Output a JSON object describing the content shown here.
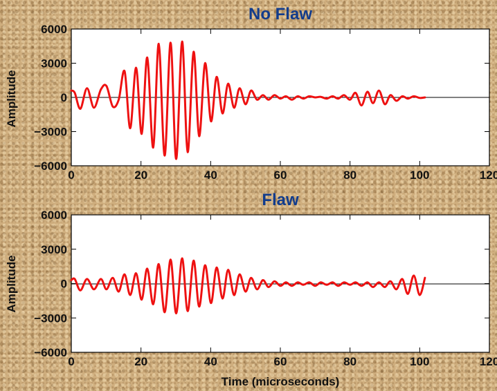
{
  "colors": {
    "title": "#123c8c",
    "series": "#ee1111",
    "plot_background": "#ffffff"
  },
  "chart_data": [
    {
      "type": "line",
      "title": "No Flaw",
      "xlabel": "",
      "ylabel": "Amplitude",
      "xlim": [
        0,
        120
      ],
      "ylim": [
        -6000,
        6000
      ],
      "xticks": [
        0,
        20,
        40,
        60,
        80,
        100,
        120
      ],
      "yticks": [
        -6000,
        -3000,
        0,
        3000,
        6000
      ],
      "grid": false,
      "zero_line": true,
      "series": [
        {
          "color": "#ee1111",
          "x": [
            0,
            1,
            2.6,
            4.5,
            6.5,
            8.5,
            10.1,
            11.9,
            13.6,
            15.3,
            16.9,
            18.6,
            20.2,
            21.8,
            23.5,
            25.1,
            26.8,
            28.5,
            30.1,
            31.8,
            33.4,
            35.1,
            36.7,
            38.4,
            40.1,
            41.7,
            43.4,
            45.0,
            46.7,
            48.3,
            50.0,
            51.6,
            53.3,
            55.0,
            56.6,
            58.3,
            60.0,
            61.6,
            63.3,
            65.0,
            66.6,
            68.3,
            70.0,
            71.6,
            73.3,
            75.0,
            76.6,
            78.3,
            80.0,
            81.6,
            83.3,
            85.0,
            86.6,
            88.3,
            90.0,
            91.6,
            93.3,
            95.0,
            96.6,
            98.3,
            100.0,
            101.5
          ],
          "values": [
            600,
            400,
            -1000,
            800,
            -900,
            700,
            1000,
            -800,
            -200,
            2300,
            -2700,
            2600,
            -3200,
            3500,
            -4400,
            4700,
            -5100,
            4800,
            -5400,
            4900,
            -4800,
            4000,
            -3400,
            3000,
            -2100,
            1800,
            -1400,
            1200,
            -900,
            800,
            -600,
            600,
            -200,
            200,
            -200,
            200,
            -100,
            100,
            -200,
            100,
            -100,
            100,
            0,
            50,
            -100,
            100,
            -100,
            200,
            -200,
            400,
            -700,
            500,
            -500,
            600,
            -600,
            200,
            -300,
            100,
            -100,
            100,
            -50,
            0
          ]
        }
      ]
    },
    {
      "type": "line",
      "title": "Flaw",
      "xlabel": "Time (microseconds)",
      "ylabel": "Amplitude",
      "xlim": [
        0,
        120
      ],
      "ylim": [
        -6000,
        6000
      ],
      "xticks": [
        0,
        20,
        40,
        60,
        80,
        100,
        120
      ],
      "yticks": [
        -6000,
        -3000,
        0,
        3000,
        6000
      ],
      "grid": false,
      "zero_line": true,
      "series": [
        {
          "color": "#ee1111",
          "x": [
            0,
            1,
            2.6,
            4.5,
            6.5,
            8.5,
            10.1,
            11.9,
            13.6,
            15.3,
            16.9,
            18.6,
            20.2,
            21.8,
            23.5,
            25.1,
            26.8,
            28.5,
            30.1,
            31.8,
            33.4,
            35.1,
            36.7,
            38.4,
            40.1,
            41.7,
            43.4,
            45.0,
            46.7,
            48.3,
            50.0,
            51.6,
            53.3,
            55.0,
            56.6,
            58.3,
            60.0,
            61.6,
            63.3,
            65.0,
            66.6,
            68.3,
            70.0,
            71.6,
            73.3,
            75.0,
            76.6,
            78.3,
            80.0,
            81.6,
            83.3,
            85.0,
            86.6,
            88.3,
            90.0,
            91.6,
            93.3,
            95.0,
            96.6,
            98.3,
            100.0,
            101.5
          ],
          "values": [
            300,
            400,
            -600,
            400,
            -500,
            400,
            -500,
            500,
            -700,
            800,
            -1000,
            900,
            -1400,
            1300,
            -1800,
            1700,
            -2500,
            2100,
            -2600,
            2200,
            -2400,
            2000,
            -2000,
            1600,
            -1700,
            1400,
            -1300,
            1200,
            -1000,
            800,
            -700,
            500,
            -500,
            300,
            -300,
            200,
            -200,
            100,
            -200,
            100,
            -100,
            100,
            -200,
            100,
            -100,
            100,
            -200,
            100,
            -100,
            100,
            -200,
            100,
            -300,
            100,
            -300,
            200,
            -500,
            400,
            -900,
            700,
            -1000,
            500
          ]
        }
      ]
    }
  ]
}
